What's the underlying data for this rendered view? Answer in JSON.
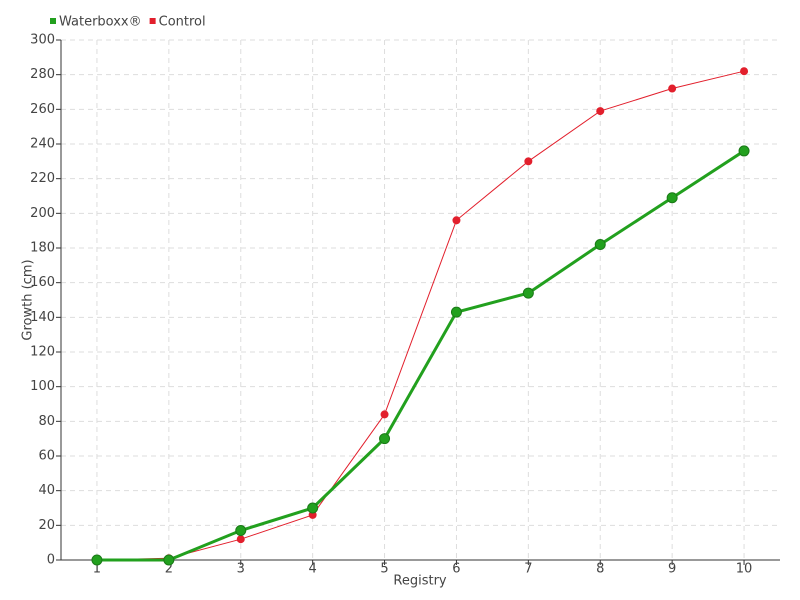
{
  "chart_data": {
    "type": "line",
    "x_label": "Registry",
    "y_label": "Growth (cm)",
    "categories": [
      "1",
      "2",
      "3",
      "4",
      "5",
      "6",
      "7",
      "8",
      "9",
      "10"
    ],
    "series": [
      {
        "name": "Waterboxx®",
        "color": "#22a01e",
        "values": [
          0,
          0,
          17,
          30,
          70,
          143,
          154,
          182,
          209,
          236
        ]
      },
      {
        "name": "Control",
        "color": "#e21f2c",
        "values": [
          0,
          1,
          12,
          26,
          84,
          196,
          230,
          259,
          272,
          282
        ]
      }
    ],
    "ylim": [
      0,
      300
    ],
    "yticks": [
      0,
      20,
      40,
      60,
      80,
      100,
      120,
      140,
      160,
      180,
      200,
      220,
      240,
      260,
      280,
      300
    ],
    "grid": true
  }
}
